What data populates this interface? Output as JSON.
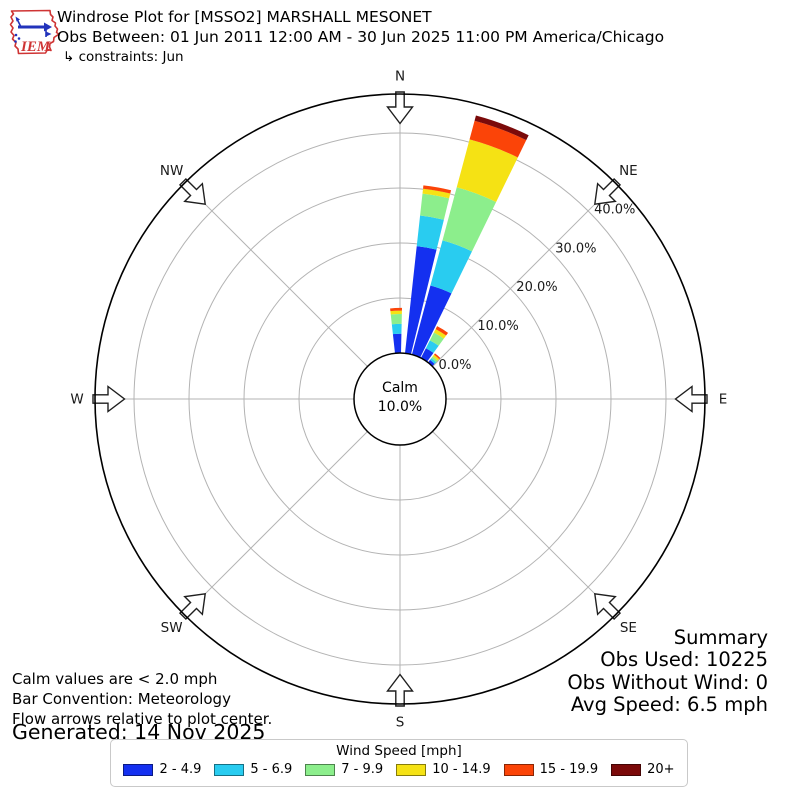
{
  "header": {
    "logo_text": "IEM",
    "title": "Windrose Plot for [MSSO2] MARSHALL MESONET",
    "subtitle": "Obs Between: 01 Jun 2011 12:00 AM - 30 Jun 2025 11:00 PM America/Chicago",
    "constraints": "↳ constraints: Jun"
  },
  "plot": {
    "compass_labels": [
      "N",
      "NE",
      "E",
      "SE",
      "S",
      "SW",
      "W",
      "NW"
    ],
    "calm_label": "Calm",
    "calm_value": "10.0%"
  },
  "chart_data": {
    "type": "bar",
    "layout": "polar-windrose-stacked",
    "units": "percent frequency of wind direction",
    "direction_degrees": [
      357.5,
      10,
      20.5,
      31.5,
      41
    ],
    "series": [
      {
        "name": "2 - 4.9",
        "color": "#1430f0",
        "values": [
          3.5,
          19.6,
          13.0,
          2.0,
          0.6
        ]
      },
      {
        "name": "5 - 6.9",
        "color": "#29ccf0",
        "values": [
          1.8,
          5.6,
          8.5,
          1.6,
          0.4
        ]
      },
      {
        "name": "7 - 9.9",
        "color": "#8cee8c",
        "values": [
          1.8,
          4.0,
          10.0,
          1.6,
          0.4
        ]
      },
      {
        "name": "10 - 14.9",
        "color": "#f5e214",
        "values": [
          0.6,
          0.9,
          9.0,
          0.7,
          0.4
        ]
      },
      {
        "name": "15 - 19.9",
        "color": "#fb4408",
        "values": [
          0.5,
          0.6,
          3.5,
          0.6,
          0.3
        ]
      },
      {
        "name": "20+",
        "color": "#7b0a0a",
        "values": [
          0.0,
          0.0,
          1.0,
          0.0,
          0.0
        ]
      }
    ],
    "bar_width_degrees": [
      7.5,
      7.5,
      11,
      9,
      7
    ],
    "rings_percent": [
      0,
      10,
      20,
      30,
      40
    ],
    "ring_labels": [
      "0.0%",
      "10.0%",
      "20.0%",
      "30.0%",
      "40.0%"
    ],
    "calm_percent": 10.0,
    "rmax_percent": 47.2,
    "legend_title": "Wind Speed [mph]",
    "grid": true,
    "legend_position": "bottom-center"
  },
  "notes": {
    "line1": "Calm values are < 2.0 mph",
    "line2": "Bar Convention: Meteorology",
    "line3": "Flow arrows relative to plot center.",
    "generated": "Generated: 14 Nov 2025"
  },
  "summary": {
    "title": "Summary",
    "obs_used": "Obs Used: 10225",
    "obs_without_wind": "Obs Without Wind: 0",
    "avg_speed": "Avg Speed: 6.5 mph"
  },
  "legend": {
    "title": "Wind Speed [mph]"
  }
}
